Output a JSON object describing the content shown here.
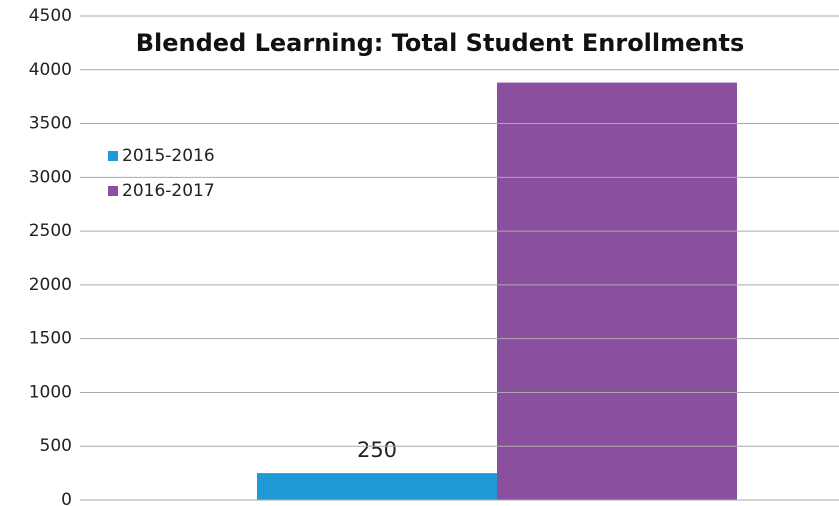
{
  "chart_data": {
    "type": "bar",
    "title": "Blended Learning:  Total Student Enrollments",
    "categories": [
      null
    ],
    "series": [
      {
        "name": "2015-2016",
        "color": "#1f9ad6",
        "values": [
          250
        ]
      },
      {
        "name": "2016-2017",
        "color": "#8a4f9e",
        "values": [
          3881
        ]
      }
    ],
    "ylim": [
      0,
      4500
    ],
    "yticks": [
      0,
      500,
      1000,
      1500,
      2000,
      2500,
      3000,
      3500,
      4000,
      4500
    ],
    "grid": true,
    "legend": "left"
  }
}
